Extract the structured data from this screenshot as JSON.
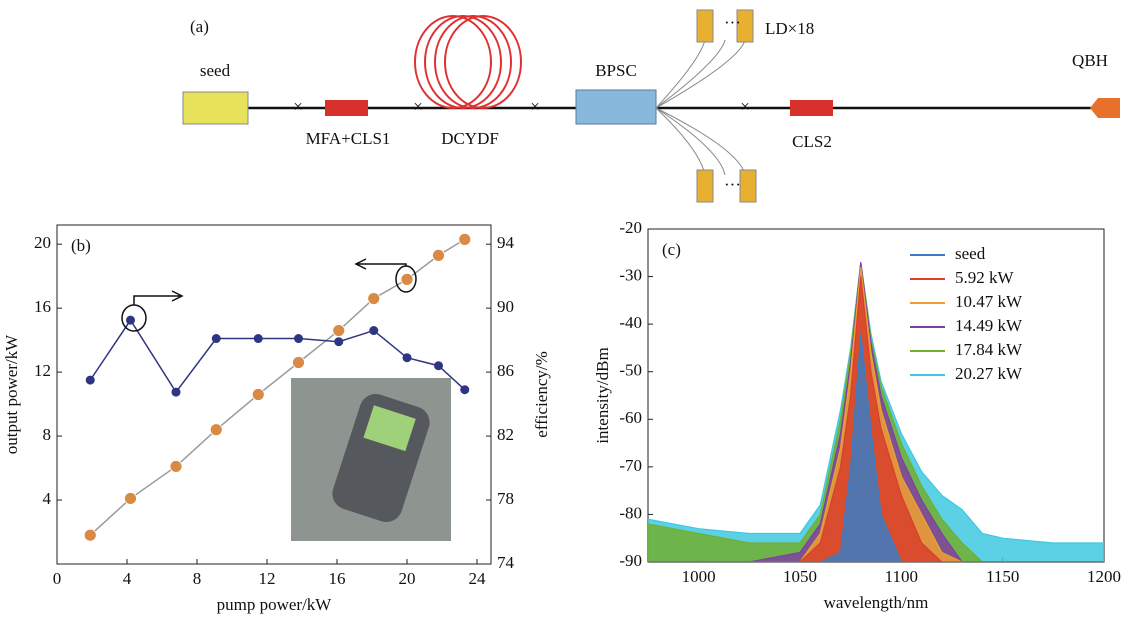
{
  "diagram": {
    "panel": "(a)",
    "labels": {
      "seed": "seed",
      "mfa": "MFA+CLS1",
      "dcydf": "DCYDF",
      "bpsc": "BPSC",
      "ld": "LD×18",
      "cls2": "CLS2",
      "qbh": "QBH"
    }
  },
  "chart_data": [
    {
      "type": "line",
      "label": "(b)",
      "xlabel": "pump power/kW",
      "ylabel": "output power/kW",
      "y2label": "efficiency/%",
      "x": [
        1.9,
        4.2,
        6.8,
        9.1,
        11.5,
        13.8,
        16.1,
        18.1,
        20.0,
        21.8,
        23.3
      ],
      "series": [
        {
          "color": "#d98a45",
          "line_color": "#9a9a9a",
          "values": [
            1.8,
            4.1,
            6.1,
            8.4,
            10.6,
            12.6,
            14.6,
            16.6,
            17.8,
            19.3,
            20.3
          ]
        },
        {
          "color": "#2e3583",
          "line_color": "#2e3583",
          "axis": "y2",
          "values": [
            85.5,
            89.25,
            84.75,
            88.1,
            88.1,
            88.1,
            87.9,
            88.6,
            86.9,
            86.4,
            84.9
          ]
        }
      ],
      "xlim": [
        0,
        24.8
      ],
      "xticks": [
        0,
        4,
        8,
        12,
        16,
        20,
        24
      ],
      "ylim": [
        0,
        21.2
      ],
      "yticks": [
        4,
        8,
        12,
        16,
        20
      ],
      "y2lim": [
        74,
        95.2
      ],
      "y2ticks": [
        74,
        78,
        82,
        86,
        90,
        94
      ]
    },
    {
      "type": "area",
      "label": "(c)",
      "xlabel": "wavelength/nm",
      "ylabel": "intensity/dBm",
      "x": [
        975,
        1000,
        1025,
        1050,
        1060,
        1070,
        1075,
        1080,
        1085,
        1090,
        1100,
        1110,
        1120,
        1130,
        1140,
        1150,
        1175,
        1200
      ],
      "series": [
        {
          "name": "seed",
          "color": "#3a7dc4",
          "values": [
            -90,
            -90,
            -90,
            -90,
            -90,
            -88,
            -70,
            -42,
            -62,
            -80,
            -90,
            -90,
            -90,
            -90,
            -90,
            -90,
            -90,
            -90
          ]
        },
        {
          "name": "5.92 kW",
          "color": "#d8402a",
          "values": [
            -90,
            -90,
            -90,
            -90,
            -86,
            -70,
            -55,
            -30,
            -50,
            -62,
            -76,
            -86,
            -90,
            -90,
            -90,
            -90,
            -90,
            -90
          ]
        },
        {
          "name": "10.47 kW",
          "color": "#f0a030",
          "values": [
            -90,
            -90,
            -90,
            -90,
            -84,
            -66,
            -50,
            -28,
            -46,
            -58,
            -72,
            -80,
            -88,
            -90,
            -90,
            -90,
            -90,
            -90
          ]
        },
        {
          "name": "14.49 kW",
          "color": "#8040a0",
          "values": [
            -90,
            -90,
            -90,
            -88,
            -82,
            -63,
            -48,
            -27,
            -44,
            -55,
            -68,
            -77,
            -84,
            -90,
            -90,
            -90,
            -90,
            -90
          ]
        },
        {
          "name": "17.84 kW",
          "color": "#70b030",
          "values": [
            -82,
            -84,
            -86,
            -86,
            -80,
            -60,
            -46,
            -27,
            -43,
            -53,
            -65,
            -74,
            -81,
            -86,
            -90,
            -90,
            -90,
            -90
          ]
        },
        {
          "name": "20.27 kW",
          "color": "#40c8e0",
          "values": [
            -81,
            -83,
            -84,
            -84,
            -78,
            -58,
            -45,
            -27,
            -42,
            -52,
            -63,
            -71,
            -76,
            -79,
            -84,
            -85,
            -86,
            -86
          ]
        }
      ],
      "xlim": [
        975,
        1200
      ],
      "xticks": [
        1000,
        1050,
        1100,
        1150,
        1200
      ],
      "ylim": [
        -90,
        -20
      ],
      "yticks": [
        -90,
        -80,
        -70,
        -60,
        -50,
        -40,
        -30,
        -20
      ]
    }
  ]
}
